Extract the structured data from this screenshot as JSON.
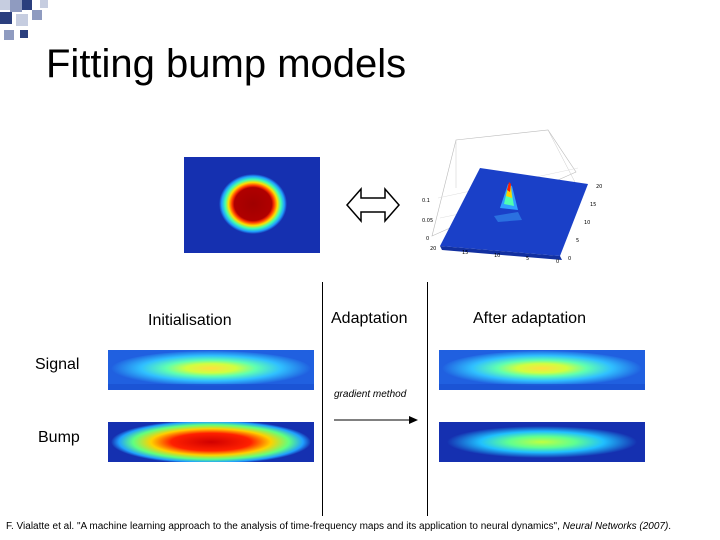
{
  "slide": {
    "title": "Fitting bump models",
    "labels": {
      "initialisation": "Initialisation",
      "adaptation": "Adaptation",
      "after_adaptation": "After adaptation",
      "signal": "Signal",
      "bump": "Bump",
      "gradient_method": "gradient method"
    },
    "surface_plot_ticks": {
      "z": [
        "0.1",
        "0.05",
        "0"
      ],
      "x": [
        "20",
        "15",
        "10",
        "5",
        "0"
      ],
      "y": [
        "20",
        "15",
        "10",
        "5",
        "0"
      ]
    },
    "citation": {
      "text_before": "F. Vialatte et al. \"A machine learning approach to the analysis of time-frequency maps and its application to neural dynamics\", ",
      "journal": "Neural Networks (2007)",
      "text_after": "."
    }
  },
  "colors": {
    "corner_navy": "#2b3f7e",
    "corner_mid": "#8f9bc0",
    "corner_light": "#c6cde0",
    "heat_blue": "#1530b0"
  }
}
